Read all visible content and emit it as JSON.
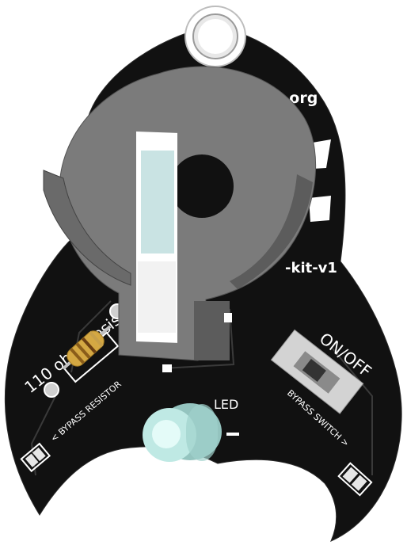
{
  "board": {
    "url_fragment": "o.org",
    "version_fragment": "-kit-v1",
    "resistor_label": "110 ohm Resisto",
    "led_label": "LED",
    "switch_label": "ON/OFF",
    "bypass_resistor_label": "< BYPASS RESISTOR",
    "bypass_switch_label": "BYPASS SWITCH >"
  },
  "colors": {
    "pcb": "#111111",
    "silkscreen": "#ffffff",
    "battery_holder": "#7b7b7b",
    "battery_holder_shadow": "#5c5c5c",
    "battery_clip": "#c9e3e3",
    "resistor_body": "#d4a843",
    "led": "#bfe9e4",
    "switch_body": "#d3d3d3"
  },
  "icons": {
    "mounting_hole": "keyring-hole-icon",
    "battery": "coin-cell-holder-icon"
  }
}
